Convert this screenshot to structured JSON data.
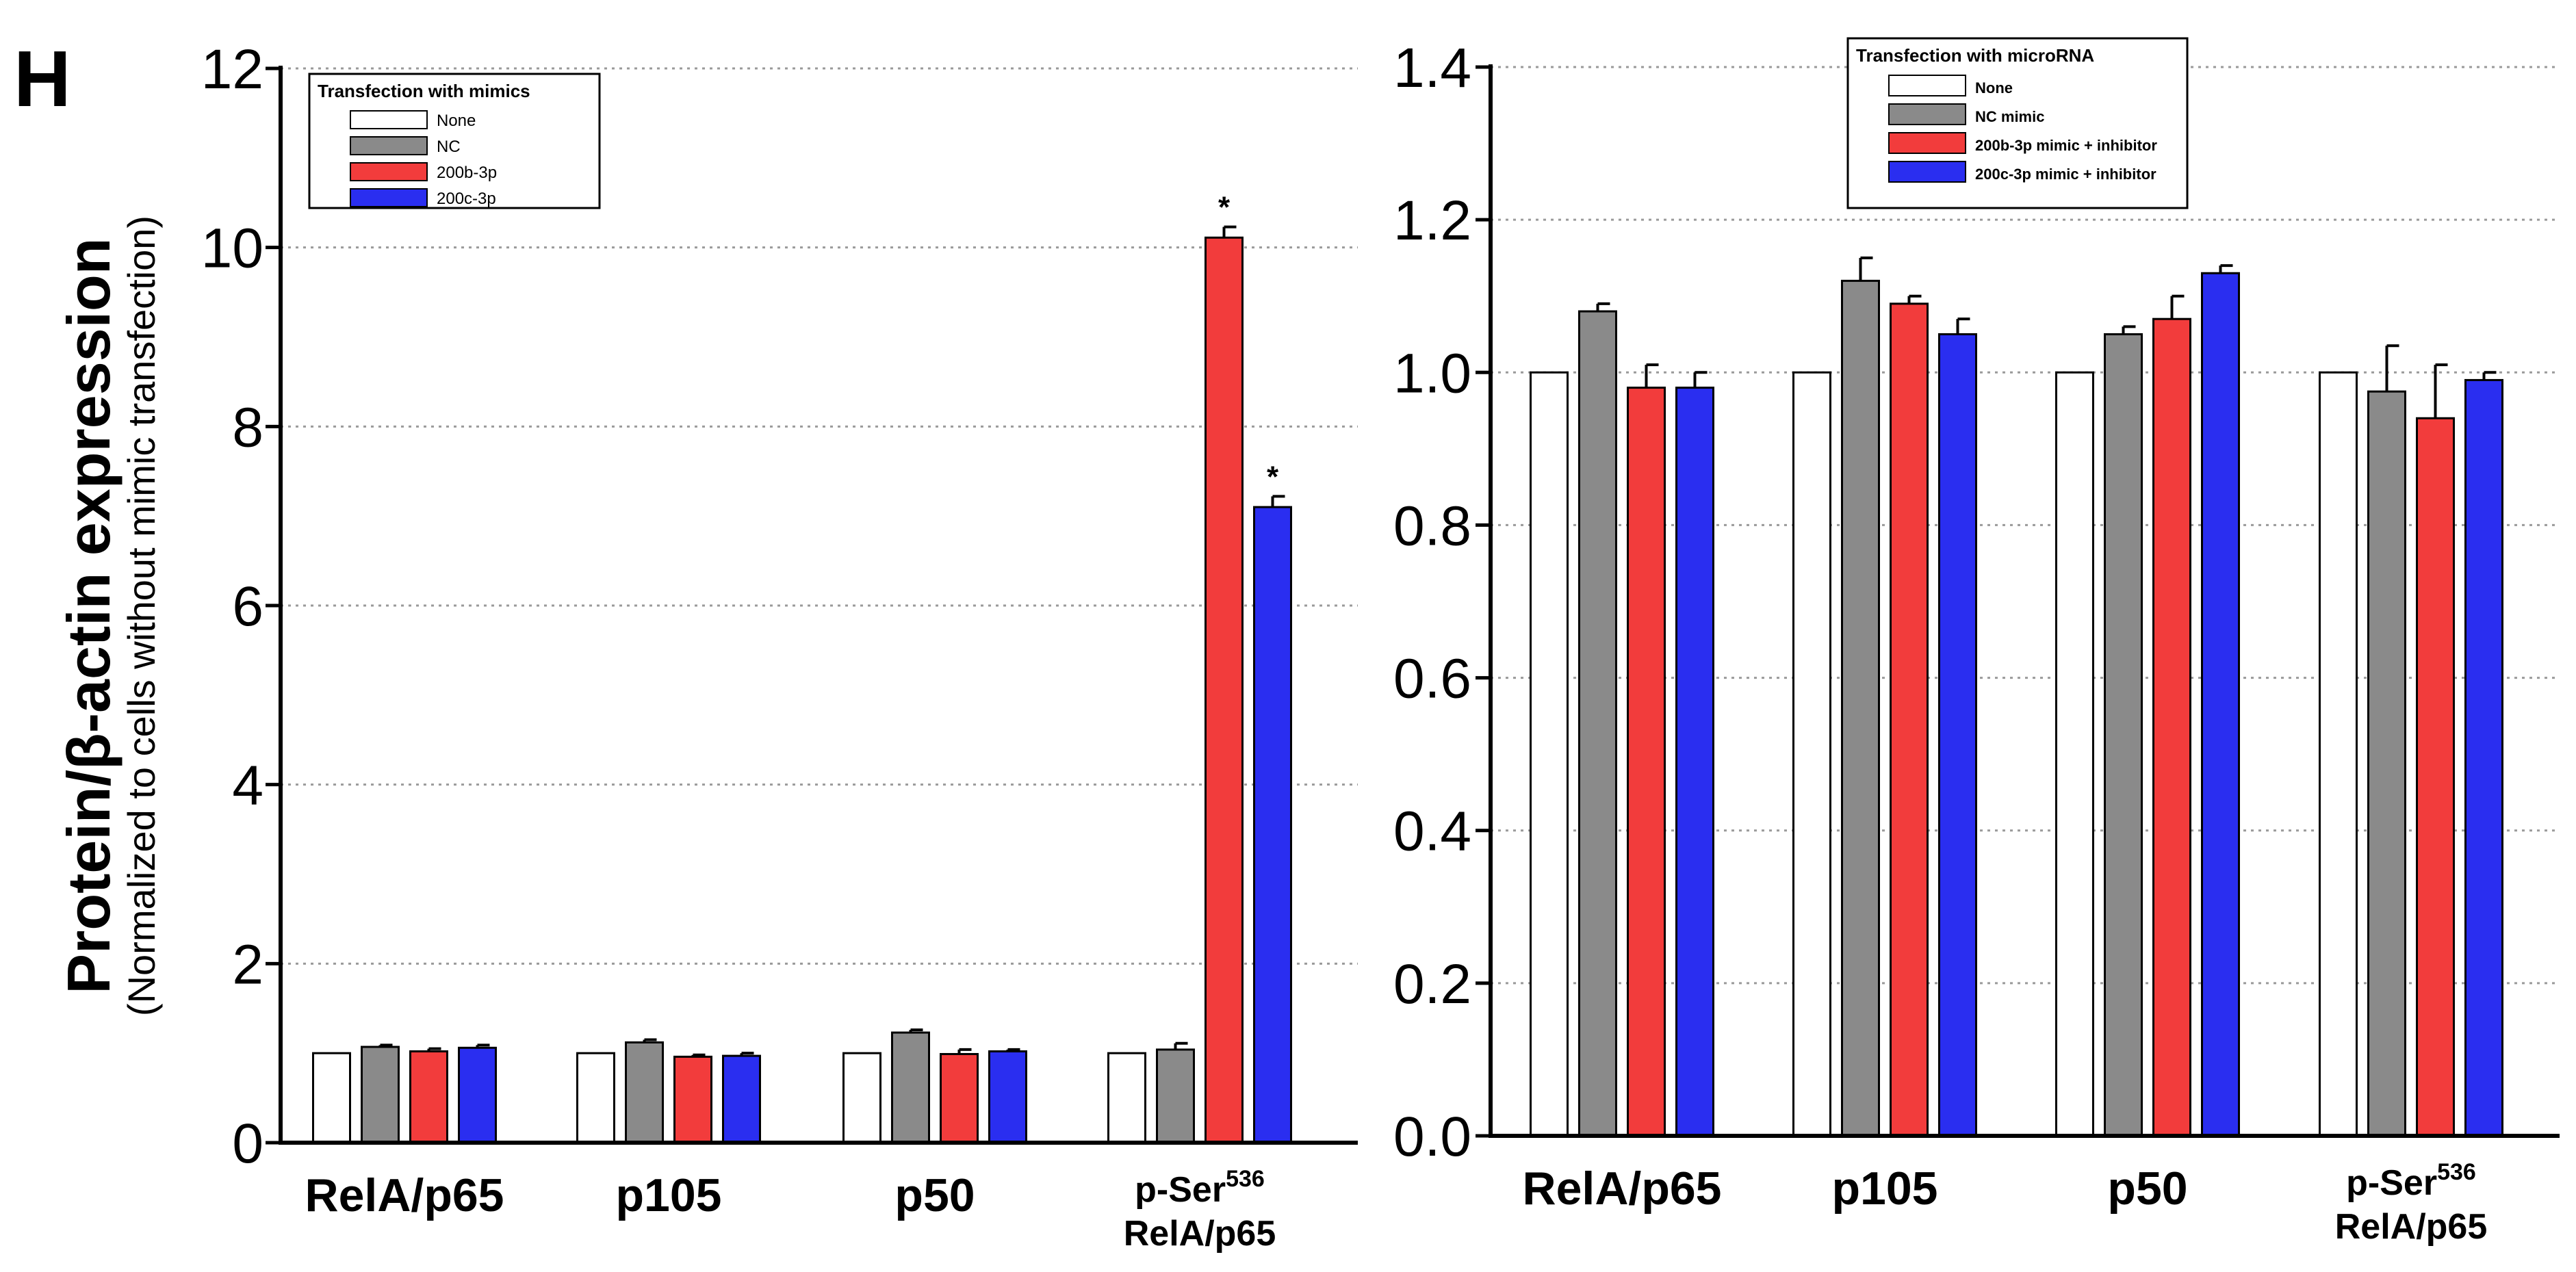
{
  "panel_label": "H",
  "y_axis_label": "Protein/β-actin expression",
  "y_axis_sublabel": "(Normalized to cells without mimic transfection)",
  "chart_data": [
    {
      "type": "bar",
      "categories": [
        "RelA/p65",
        "p105",
        "p50",
        "p-Ser536 RelA/p65"
      ],
      "category_labels": [
        {
          "line1": "RelA/p65"
        },
        {
          "line1": "p105"
        },
        {
          "line1": "p50"
        },
        {
          "line1a": "p-Ser",
          "line1sup": "536",
          "line2": "RelA/p65"
        }
      ],
      "ylim": [
        0,
        12
      ],
      "yticks": [
        0,
        2,
        4,
        6,
        8,
        10,
        12
      ],
      "ytick_labels": [
        "0",
        "2",
        "4",
        "6",
        "8",
        "10",
        "12"
      ],
      "legend_title": "Transfection with mimics",
      "legend_placement": "top-left",
      "grid": "horizontal dotted",
      "series": [
        {
          "name": "None",
          "color": "#ffffff",
          "values": [
            1.0,
            1.0,
            1.0,
            1.0
          ],
          "errors": [
            0,
            0,
            0,
            0
          ]
        },
        {
          "name": "NC",
          "color": "#8a8a8a",
          "values": [
            1.07,
            1.12,
            1.23,
            1.04
          ],
          "errors": [
            0.02,
            0.03,
            0.03,
            0.07
          ]
        },
        {
          "name": "200b-3p",
          "color": "#f23c3c",
          "values": [
            1.02,
            0.96,
            0.99,
            10.11
          ],
          "errors": [
            0.03,
            0.02,
            0.05,
            0.12
          ]
        },
        {
          "name": "200c-3p",
          "color": "#2a2ef0",
          "values": [
            1.06,
            0.97,
            1.02,
            7.1
          ],
          "errors": [
            0.03,
            0.03,
            0.02,
            0.12
          ]
        }
      ],
      "annotations": [
        {
          "category": "p-Ser536 RelA/p65",
          "series": "200b-3p",
          "text": "*"
        },
        {
          "category": "p-Ser536 RelA/p65",
          "series": "200c-3p",
          "text": "*"
        }
      ]
    },
    {
      "type": "bar",
      "categories": [
        "RelA/p65",
        "p105",
        "p50",
        "p-Ser536 RelA/p65"
      ],
      "category_labels": [
        {
          "line1": "RelA/p65"
        },
        {
          "line1": "p105"
        },
        {
          "line1": "p50"
        },
        {
          "line1a": "p-Ser",
          "line1sup": "536",
          "line2": "RelA/p65"
        }
      ],
      "ylim": [
        0,
        1.4
      ],
      "yticks": [
        0,
        0.2,
        0.4,
        0.6,
        0.8,
        1.0,
        1.2,
        1.4
      ],
      "ytick_labels": [
        "0.0",
        "0.2",
        "0.4",
        "0.6",
        "0.8",
        "1.0",
        "1.2",
        "1.4"
      ],
      "legend_title": "Transfection with microRNA",
      "legend_placement": "top-right",
      "grid": "horizontal dotted",
      "series": [
        {
          "name": "None",
          "color": "#ffffff",
          "values": [
            1.0,
            1.0,
            1.0,
            1.0
          ],
          "errors": [
            0,
            0,
            0,
            0
          ]
        },
        {
          "name": "NC mimic",
          "color": "#8a8a8a",
          "values": [
            1.08,
            1.12,
            1.05,
            0.975
          ],
          "errors": [
            0.01,
            0.03,
            0.01,
            0.06
          ]
        },
        {
          "name": "200b-3p mimic + inhibitor",
          "color": "#f23c3c",
          "values": [
            0.98,
            1.09,
            1.07,
            0.94
          ],
          "errors": [
            0.03,
            0.01,
            0.03,
            0.07
          ]
        },
        {
          "name": "200c-3p mimic + inhibitor",
          "color": "#2a2ef0",
          "values": [
            0.98,
            1.05,
            1.13,
            0.99
          ],
          "errors": [
            0.02,
            0.02,
            0.01,
            0.01
          ]
        }
      ],
      "annotations": []
    }
  ]
}
